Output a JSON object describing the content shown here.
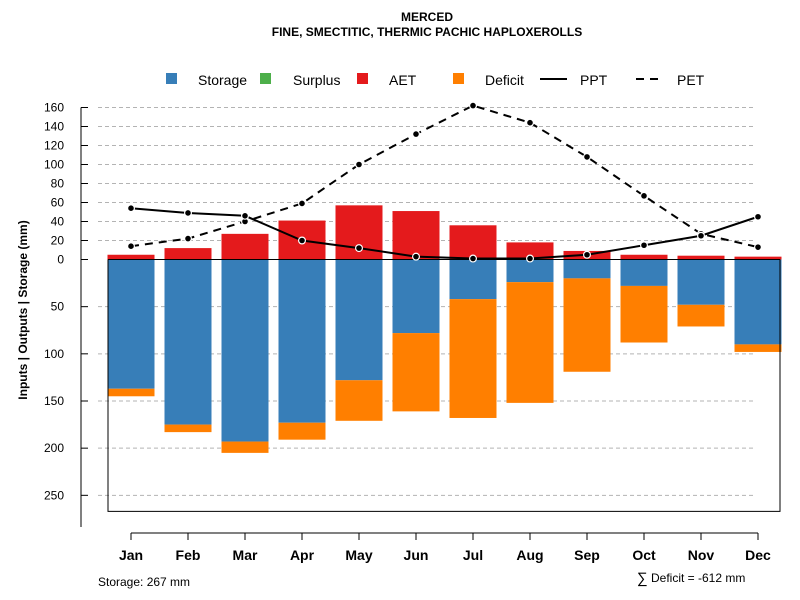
{
  "title_line1": "MERCED",
  "title_line2": "FINE, SMECTITIC, THERMIC PACHIC HAPLOXEROLLS",
  "footer": {
    "storage": "Storage: 267 mm",
    "deficit_symbol": "∑",
    "deficit": "Deficit = -612 mm"
  },
  "chart_data": {
    "type": "bar",
    "title": "MERCED — FINE, SMECTITIC, THERMIC PACHIC HAPLOXEROLLS",
    "ylabel": "Inputs | Outputs | Storage    (mm)",
    "categories": [
      "Jan",
      "Feb",
      "Mar",
      "Apr",
      "May",
      "Jun",
      "Jul",
      "Aug",
      "Sep",
      "Oct",
      "Nov",
      "Dec"
    ],
    "upper_ylim": [
      0,
      160
    ],
    "upper_ticks": [
      "0",
      "20",
      "40",
      "60",
      "80",
      "100",
      "120",
      "140",
      "160"
    ],
    "upper_tick_values": [
      0,
      20,
      40,
      60,
      80,
      100,
      120,
      140,
      160
    ],
    "lower_ylim": [
      0,
      267
    ],
    "lower_ticks": [
      "50",
      "100",
      "150",
      "200",
      "250"
    ],
    "lower_tick_values": [
      50,
      100,
      150,
      200,
      250
    ],
    "legend": [
      {
        "name": "Storage",
        "kind": "box",
        "color": "#377EB8"
      },
      {
        "name": "Surplus",
        "kind": "box",
        "color": "#4DAF4A"
      },
      {
        "name": "AET",
        "kind": "box",
        "color": "#E41A1C"
      },
      {
        "name": "Deficit",
        "kind": "box",
        "color": "#FF7F00"
      },
      {
        "name": "PPT",
        "kind": "solid",
        "color": "#000000"
      },
      {
        "name": "PET",
        "kind": "dashed",
        "color": "#000000"
      }
    ],
    "series": [
      {
        "name": "AET",
        "values": [
          5,
          12,
          27,
          41,
          57,
          51,
          36,
          18,
          9,
          5,
          4,
          3
        ]
      },
      {
        "name": "Storage",
        "values": [
          137,
          175,
          193,
          173,
          128,
          78,
          42,
          24,
          20,
          28,
          48,
          90
        ]
      },
      {
        "name": "Deficit",
        "values": [
          8,
          8,
          12,
          18,
          43,
          83,
          126,
          128,
          99,
          60,
          23,
          8
        ]
      },
      {
        "name": "Surplus",
        "values": [
          0,
          0,
          0,
          0,
          0,
          0,
          0,
          0,
          0,
          0,
          0,
          0
        ]
      },
      {
        "name": "PPT",
        "values": [
          54,
          49,
          46,
          20,
          12,
          3,
          1,
          1,
          5,
          15,
          25,
          45
        ]
      },
      {
        "name": "PET",
        "values": [
          14,
          22,
          40,
          59,
          100,
          132,
          162,
          144,
          108,
          67,
          27,
          13
        ]
      }
    ]
  }
}
